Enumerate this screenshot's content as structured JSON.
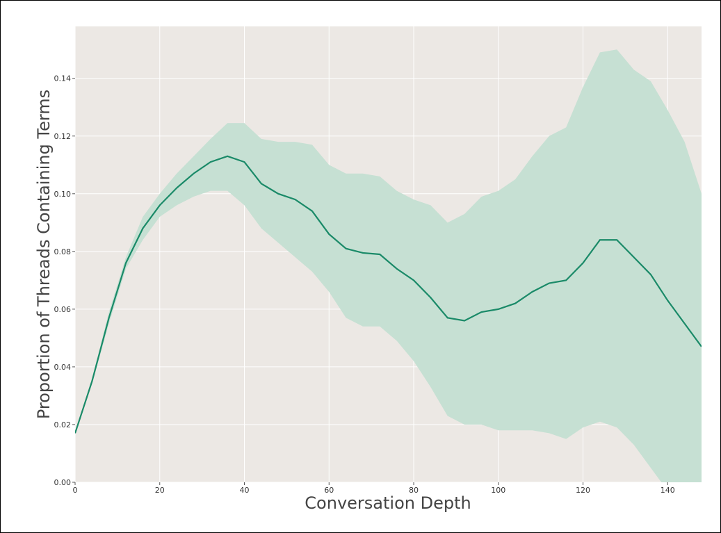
{
  "chart_data": {
    "type": "line",
    "xlabel": "Conversation Depth",
    "ylabel": "Proportion of Threads Containing Terms",
    "x": [
      0,
      4,
      8,
      12,
      16,
      20,
      24,
      28,
      32,
      36,
      40,
      44,
      48,
      52,
      56,
      60,
      64,
      68,
      72,
      76,
      80,
      84,
      88,
      92,
      96,
      100,
      104,
      108,
      112,
      116,
      120,
      124,
      128,
      132,
      136,
      140,
      144,
      148
    ],
    "values": [
      0.017,
      0.035,
      0.057,
      0.076,
      0.088,
      0.096,
      0.102,
      0.107,
      0.111,
      0.113,
      0.111,
      0.1035,
      0.1,
      0.098,
      0.094,
      0.086,
      0.081,
      0.0795,
      0.079,
      0.074,
      0.07,
      0.064,
      0.057,
      0.056,
      0.059,
      0.06,
      0.062,
      0.066,
      0.069,
      0.07,
      0.076,
      0.084,
      0.084,
      0.078,
      0.072,
      0.063,
      0.055,
      0.047
    ],
    "band": {
      "lower": [
        0.017,
        0.034,
        0.055,
        0.074,
        0.084,
        0.092,
        0.096,
        0.099,
        0.101,
        0.101,
        0.096,
        0.088,
        0.083,
        0.078,
        0.073,
        0.066,
        0.057,
        0.054,
        0.054,
        0.049,
        0.042,
        0.033,
        0.023,
        0.02,
        0.02,
        0.018,
        0.018,
        0.018,
        0.017,
        0.015,
        0.019,
        0.021,
        0.019,
        0.013,
        0.005,
        -0.003,
        -0.012,
        -0.02
      ],
      "upper": [
        0.017,
        0.036,
        0.059,
        0.078,
        0.092,
        0.1,
        0.107,
        0.113,
        0.119,
        0.1245,
        0.1245,
        0.119,
        0.118,
        0.118,
        0.117,
        0.11,
        0.107,
        0.107,
        0.106,
        0.101,
        0.098,
        0.096,
        0.09,
        0.093,
        0.099,
        0.101,
        0.105,
        0.113,
        0.12,
        0.123,
        0.137,
        0.149,
        0.15,
        0.143,
        0.139,
        0.129,
        0.118,
        0.1
      ],
      "color": "#c6e0d3"
    },
    "color": "#1a8a68",
    "background": "#ece8e4",
    "grid": true,
    "xlim": [
      0,
      148
    ],
    "ylim": [
      0,
      0.158
    ],
    "xticks": [
      0,
      20,
      40,
      60,
      80,
      100,
      120,
      140
    ],
    "yticks": [
      {
        "value": 0,
        "label": "0.00"
      },
      0.02,
      0.04,
      0.06,
      0.08,
      {
        "value": 0.1,
        "label": "0.10"
      },
      0.12,
      0.14
    ]
  }
}
